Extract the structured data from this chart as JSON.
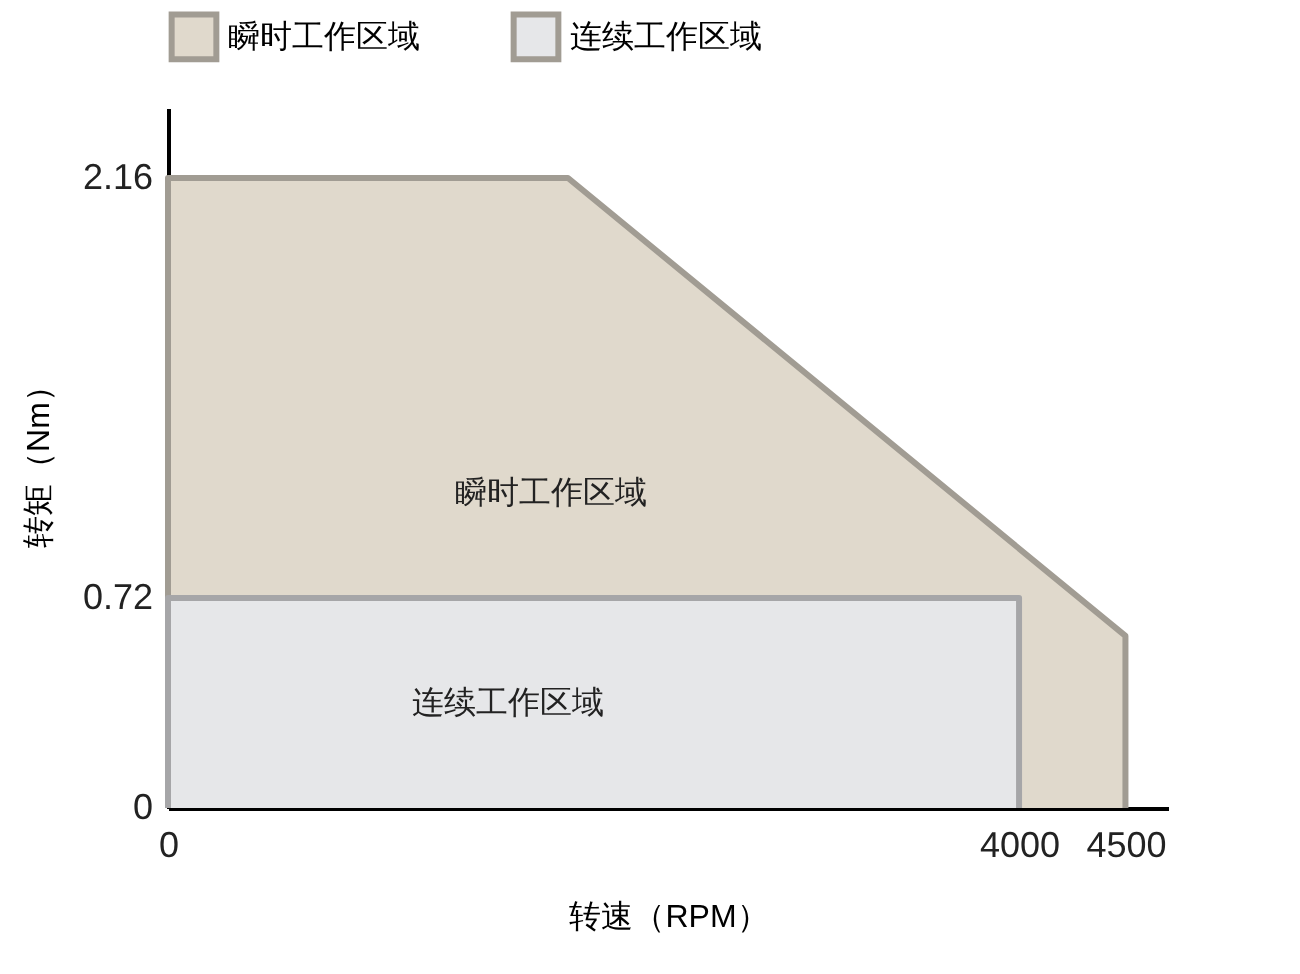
{
  "chart_data": {
    "type": "area",
    "xlabel": "转速（RPM）",
    "ylabel": "转矩（Nm）",
    "xlim": [
      0,
      4700
    ],
    "ylim": [
      0,
      2.4
    ],
    "xticks": [
      0,
      4000,
      4500
    ],
    "yticks": [
      0,
      0.72,
      2.16
    ],
    "grid": false,
    "legend": "top",
    "series": [
      {
        "name": "瞬时工作区域",
        "color": "#e0d9cc",
        "x": [
          0,
          1880,
          4500,
          4500
        ],
        "values": [
          2.16,
          2.16,
          0.59,
          0
        ]
      },
      {
        "name": "连续工作区域",
        "color": "#e6e7e9",
        "x": [
          0,
          4000,
          4000
        ],
        "values": [
          0.72,
          0.72,
          0
        ]
      }
    ],
    "annotations": [
      "瞬时工作区域",
      "连续工作区域"
    ]
  }
}
